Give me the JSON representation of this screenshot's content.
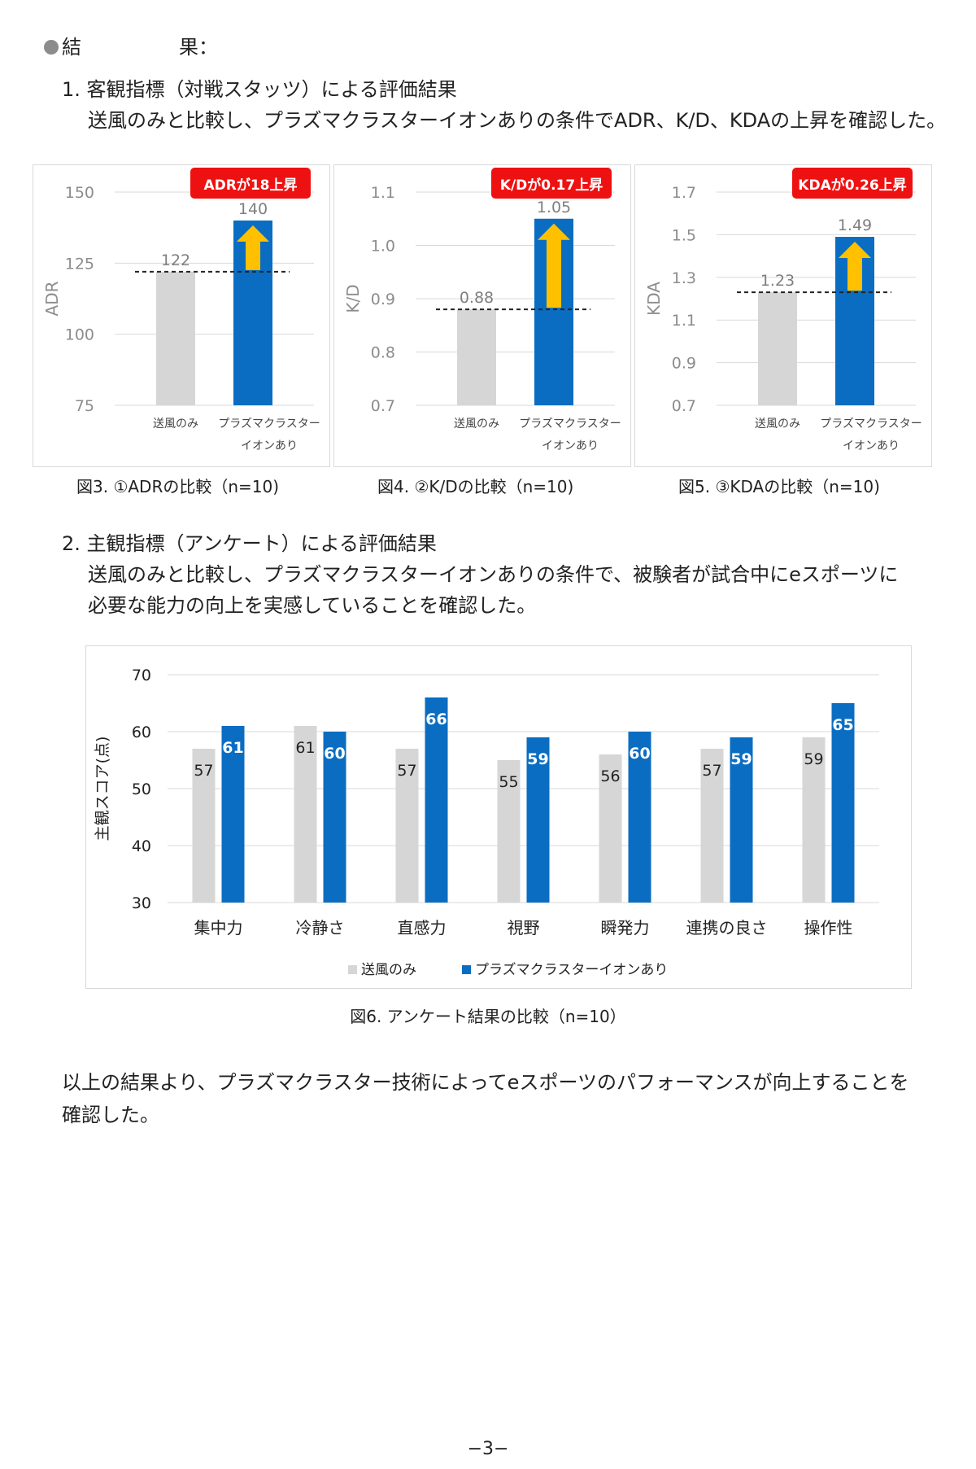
{
  "heading": {
    "bullet_label": "結",
    "bullet_label2": "果："
  },
  "section1": {
    "title": "1. 客観指標（対戦スタッツ）による評価結果",
    "body": "送風のみと比較し、プラズマクラスターイオンありの条件でADR、K/D、KDAの上昇を確認した。"
  },
  "section2": {
    "title": "2. 主観指標（アンケート）による評価結果",
    "body_line1": "送風のみと比較し、プラズマクラスターイオンありの条件で、被験者が試合中にeスポーツに",
    "body_line2": "必要な能力の向上を実感していることを確認した。"
  },
  "conclusion": {
    "line1": "以上の結果より、プラズマクラスター技術によってeスポーツのパフォーマンスが向上することを",
    "line2": "確認した。"
  },
  "page_number": "−3−",
  "colors": {
    "gray": "#d6d6d6",
    "blue": "#0a6dc2",
    "arrow": "#ffc000",
    "badge": "#ee1111"
  },
  "chart_data": [
    {
      "type": "bar",
      "title": "図3. ①ADRの比較（n=10)",
      "ylabel": "ADR",
      "categories": [
        "送風のみ",
        "プラズマクラスター\nイオンあり"
      ],
      "values": [
        122,
        140
      ],
      "value_labels": [
        "122",
        "140"
      ],
      "ylim": [
        75,
        150
      ],
      "yticks": [
        75,
        100,
        125,
        150
      ],
      "ytick_labels": [
        "75",
        "100",
        "125",
        "150"
      ],
      "badge": "ADRが18上昇"
    },
    {
      "type": "bar",
      "title": "図4. ②K/Dの比較（n=10)",
      "ylabel": "K/D",
      "categories": [
        "送風のみ",
        "プラズマクラスター\nイオンあり"
      ],
      "values": [
        0.88,
        1.05
      ],
      "value_labels": [
        "0.88",
        "1.05"
      ],
      "ylim": [
        0.7,
        1.1
      ],
      "yticks": [
        0.7,
        0.8,
        0.9,
        1.0,
        1.1
      ],
      "ytick_labels": [
        "0.7",
        "0.8",
        "0.9",
        "1.0",
        "1.1"
      ],
      "badge": "K/Dが0.17上昇"
    },
    {
      "type": "bar",
      "title": "図5. ③KDAの比較（n=10)",
      "ylabel": "KDA",
      "categories": [
        "送風のみ",
        "プラズマクラスター\nイオンあり"
      ],
      "values": [
        1.23,
        1.49
      ],
      "value_labels": [
        "1.23",
        "1.49"
      ],
      "ylim": [
        0.7,
        1.7
      ],
      "yticks": [
        0.7,
        0.9,
        1.1,
        1.3,
        1.5,
        1.7
      ],
      "ytick_labels": [
        "0.7",
        "0.9",
        "1.1",
        "1.3",
        "1.5",
        "1.7"
      ],
      "badge": "KDAが0.26上昇"
    },
    {
      "type": "bar",
      "title": "図6. アンケート結果の比較（n=10）",
      "ylabel": "主観スコア(点)",
      "categories": [
        "集中力",
        "冷静さ",
        "直感力",
        "視野",
        "瞬発力",
        "連携の良さ",
        "操作性"
      ],
      "series": [
        {
          "name": "送風のみ",
          "values": [
            57,
            61,
            57,
            55,
            56,
            57,
            59
          ],
          "value_labels": [
            "57",
            "61",
            "57",
            "55",
            "56",
            "57",
            "59"
          ]
        },
        {
          "name": "プラズマクラスターイオンあり",
          "values": [
            61,
            60,
            66,
            59,
            60,
            59,
            65
          ],
          "value_labels": [
            "61",
            "60",
            "66",
            "59",
            "60",
            "59",
            "65"
          ]
        }
      ],
      "ylim": [
        30,
        70
      ],
      "yticks": [
        30,
        40,
        50,
        60,
        70
      ],
      "ytick_labels": [
        "30",
        "40",
        "50",
        "60",
        "70"
      ],
      "legend": "bottom"
    }
  ]
}
